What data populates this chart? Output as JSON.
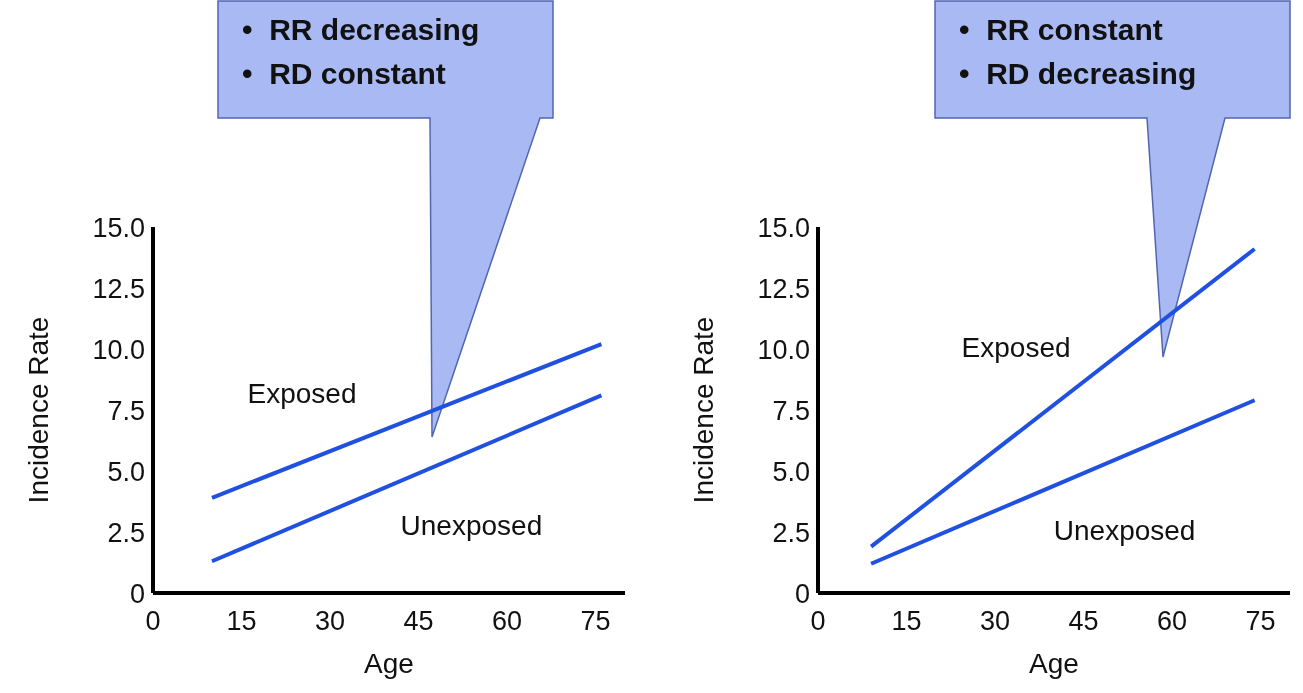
{
  "chart_data": [
    {
      "type": "line",
      "xlabel": "Age",
      "ylabel": "Incidence Rate",
      "annotations": [
        "•  RR decreasing",
        "•  RD constant"
      ],
      "xlim": [
        0,
        80
      ],
      "xticks": [
        0,
        15,
        30,
        45,
        60,
        75
      ],
      "ylim": [
        0,
        15
      ],
      "yticks": [
        {
          "value": 0,
          "label": "0"
        },
        {
          "value": 2.5,
          "label": "2.5"
        },
        {
          "value": 5,
          "label": "5.0"
        },
        {
          "value": 7.5,
          "label": "7.5"
        },
        {
          "value": 10,
          "label": "10.0"
        },
        {
          "value": 12.5,
          "label": "12.5"
        },
        {
          "value": 15,
          "label": "15.0"
        }
      ],
      "grid": false,
      "legend": false,
      "marker": "none",
      "line_style": "solid",
      "x": [
        10,
        76
      ],
      "series": [
        {
          "name": "Exposed",
          "color": "#2050e0",
          "values": [
            3.9,
            10.2
          ]
        },
        {
          "name": "Unexposed",
          "color": "#2050e0",
          "values": [
            1.3,
            8.1
          ]
        }
      ]
    },
    {
      "type": "line",
      "xlabel": "Age",
      "ylabel": "Incidence Rate",
      "annotations": [
        "•  RR constant",
        "•  RD decreasing"
      ],
      "xlim": [
        0,
        80
      ],
      "xticks": [
        0,
        15,
        30,
        45,
        60,
        75
      ],
      "ylim": [
        0,
        15
      ],
      "yticks": [
        {
          "value": 0,
          "label": "0"
        },
        {
          "value": 2.5,
          "label": "2.5"
        },
        {
          "value": 5,
          "label": "5.0"
        },
        {
          "value": 7.5,
          "label": "7.5"
        },
        {
          "value": 10,
          "label": "10.0"
        },
        {
          "value": 12.5,
          "label": "12.5"
        },
        {
          "value": 15,
          "label": "15.0"
        }
      ],
      "grid": false,
      "legend": false,
      "marker": "none",
      "line_style": "solid",
      "x": [
        9,
        74
      ],
      "series": [
        {
          "name": "Exposed",
          "color": "#2050e0",
          "values": [
            1.9,
            14.1
          ]
        },
        {
          "name": "Unexposed",
          "color": "#2050e0",
          "values": [
            1.2,
            7.9
          ]
        }
      ]
    }
  ]
}
